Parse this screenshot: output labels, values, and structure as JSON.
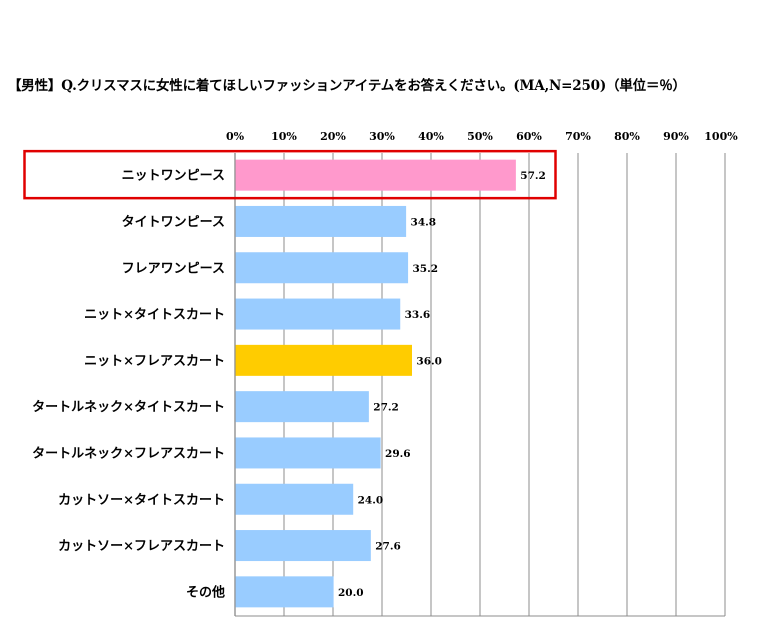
{
  "chart_data": {
    "type": "bar",
    "orientation": "horizontal",
    "title": "【男性】Q.クリスマスに女性に着てほしいファッションアイテムをお答えください。(MA,N=250)（単位＝％）",
    "categories": [
      "ニットワンピース",
      "タイトワンピース",
      "フレアワンピース",
      "ニット×タイトスカート",
      "ニット×フレアスカート",
      "タートルネック×タイトスカート",
      "タートルネック×フレアスカート",
      "カットソー×タイトスカート",
      "カットソー×フレアスカート",
      "その他"
    ],
    "values": [
      57.2,
      34.8,
      35.2,
      33.6,
      36.0,
      27.2,
      29.6,
      24.0,
      27.6,
      20.0
    ],
    "value_labels": [
      "57.2",
      "34.8",
      "35.2",
      "33.6",
      "36.0",
      "27.2",
      "29.6",
      "24.0",
      "27.6",
      "20.0"
    ],
    "xlim": [
      0,
      100
    ],
    "x_ticks": [
      "0%",
      "10%",
      "20%",
      "30%",
      "40%",
      "50%",
      "60%",
      "70%",
      "80%",
      "90%",
      "100%"
    ],
    "grid": true,
    "highlight_box_index": 0,
    "bar_colors": [
      "#ff99cc",
      "#99ccff",
      "#99ccff",
      "#99ccff",
      "#ffcc00",
      "#99ccff",
      "#99ccff",
      "#99ccff",
      "#99ccff",
      "#99ccff"
    ],
    "highlight_border_color": "#e00000"
  }
}
